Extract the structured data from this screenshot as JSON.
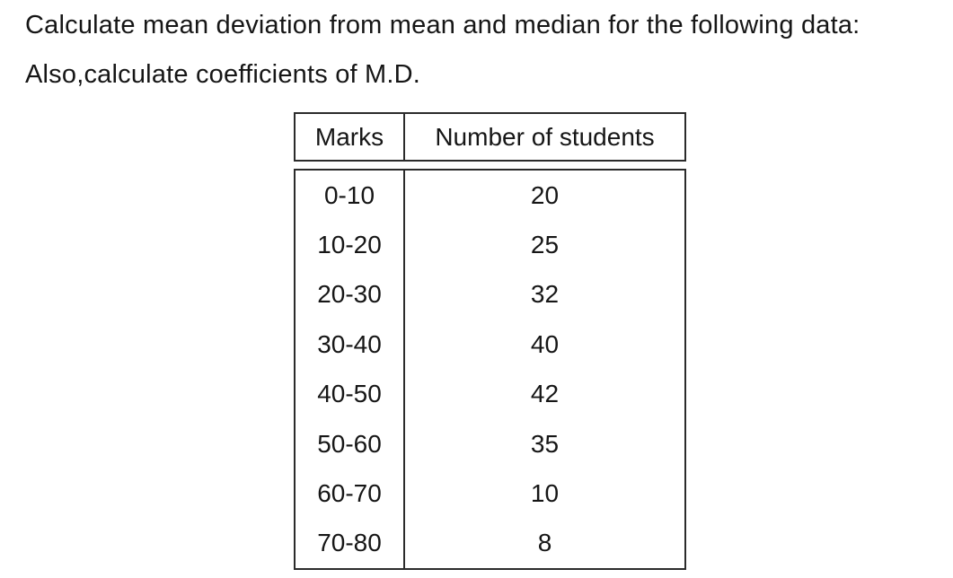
{
  "page": {
    "background": "#ffffff",
    "text_color": "#161616",
    "border_color": "#2b2b2b"
  },
  "problem": {
    "line1": "Calculate mean deviation from mean and median for the following data:",
    "line2": "Also,calculate coefficients of M.D."
  },
  "table": {
    "headers": {
      "marks": "Marks",
      "students": "Number of students"
    },
    "rows": [
      {
        "marks": "0-10",
        "students": "20"
      },
      {
        "marks": "10-20",
        "students": "25"
      },
      {
        "marks": "20-30",
        "students": "32"
      },
      {
        "marks": "30-40",
        "students": "40"
      },
      {
        "marks": "40-50",
        "students": "42"
      },
      {
        "marks": "50-60",
        "students": "35"
      },
      {
        "marks": "60-70",
        "students": "10"
      },
      {
        "marks": "70-80",
        "students": "8"
      }
    ]
  }
}
